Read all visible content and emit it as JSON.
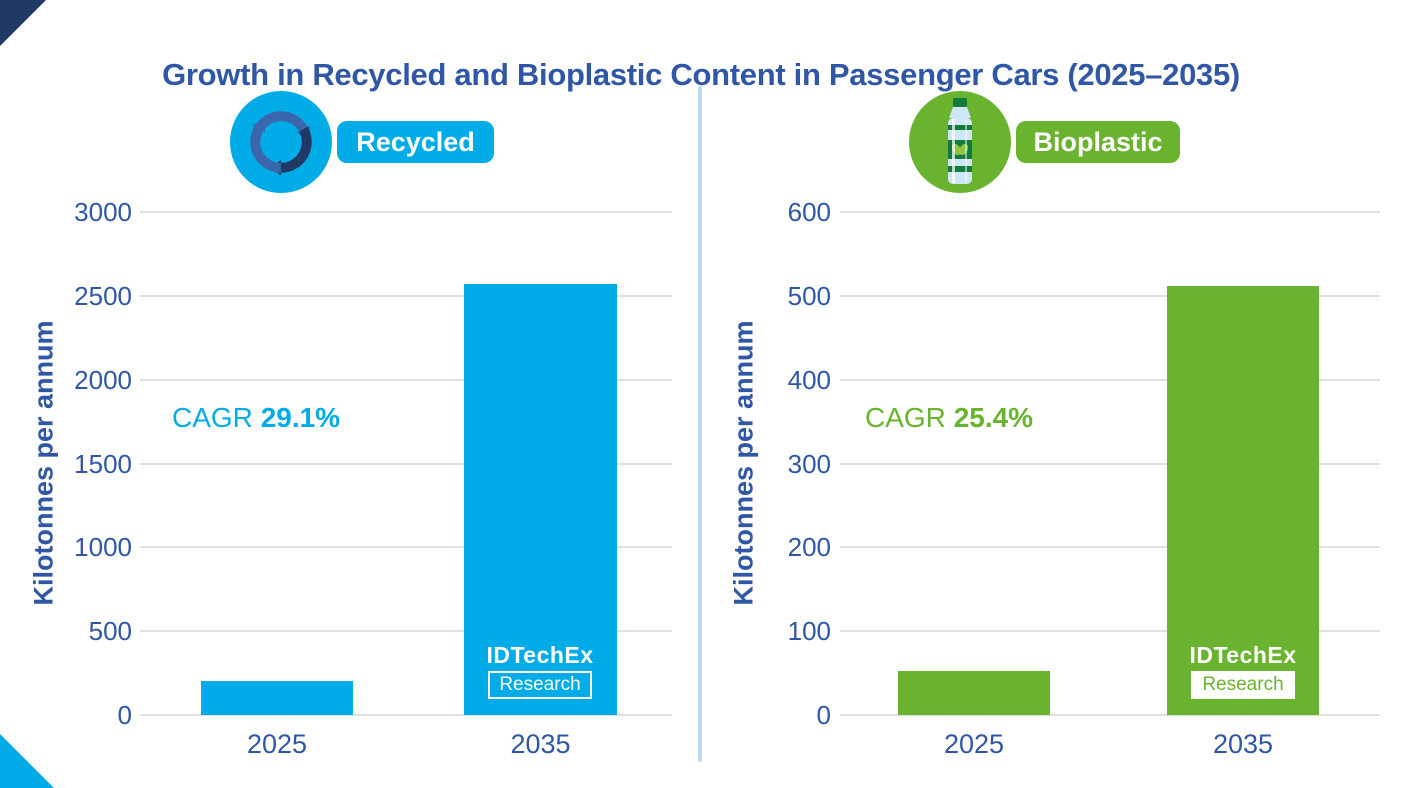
{
  "title": "Growth in Recycled and Bioplastic Content in Passenger Cars (2025–2035)",
  "decor": {
    "divider_color": "#BCD9F2",
    "corner_top_color": "#1F3864",
    "corner_bottom_color": "#00ACE8",
    "grid_color": "#E0E0E0",
    "text_color": "#2F57A5"
  },
  "chart_data": [
    {
      "type": "bar",
      "series_label": "Recycled",
      "icon": "recycle-icon",
      "color": "#00ACE8",
      "categories": [
        "2025",
        "2035"
      ],
      "values": [
        200,
        2570
      ],
      "xlabel": "",
      "ylabel": "Kilotonnes per annum",
      "ylim": [
        0,
        3000
      ],
      "y_ticks": [
        0,
        500,
        1000,
        1500,
        2000,
        2500,
        3000
      ],
      "grid": true,
      "cagr_label": "CAGR",
      "cagr_value": "29.1%",
      "annotation": "CAGR 29.1%",
      "logo": {
        "line1": "IDTechEx",
        "line2": "Research"
      }
    },
    {
      "type": "bar",
      "series_label": "Bioplastic",
      "icon": "bottle-icon",
      "color": "#69B32E",
      "categories": [
        "2025",
        "2035"
      ],
      "values": [
        53,
        512
      ],
      "xlabel": "",
      "ylabel": "Kilotonnes per annum",
      "ylim": [
        0,
        600
      ],
      "y_ticks": [
        0,
        100,
        200,
        300,
        400,
        500,
        600
      ],
      "grid": true,
      "cagr_label": "CAGR",
      "cagr_value": "25.4%",
      "annotation": "CAGR 25.4%",
      "logo": {
        "line1": "IDTechEx",
        "line2": "Research"
      }
    }
  ]
}
